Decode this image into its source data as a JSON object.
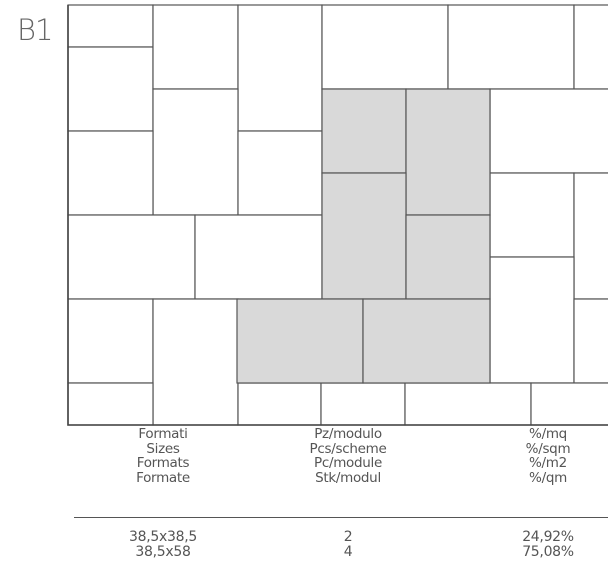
{
  "pattern_code": "B1",
  "pattern_colors": {
    "tile_fill": "#ffffff",
    "highlight_fill": "#d9d9d9",
    "tile_stroke": "#555555"
  },
  "table": {
    "headers": [
      [
        "Formati",
        "Sizes",
        "Formats",
        "Formate"
      ],
      [
        "Pz/modulo",
        "Pcs/scheme",
        "Pc/module",
        "Stk/modul"
      ],
      [
        "%/mq",
        "%/sqm",
        "%/m2",
        "%/qm"
      ]
    ],
    "rows": [
      [
        "38,5x38,5",
        "2",
        "24,92%"
      ],
      [
        "38,5x58",
        "4",
        "75,08%"
      ]
    ]
  }
}
